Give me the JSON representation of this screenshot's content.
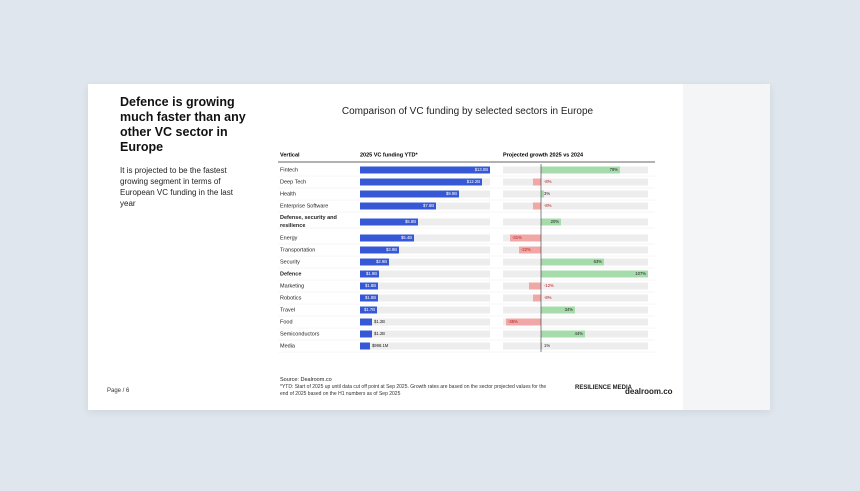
{
  "slide": {
    "headline": "Defence is growing much faster than any other VC sector in Europe",
    "body": "It is projected to be the fastest growing segment in terms of European VC funding in the last year",
    "page": "Page / 6",
    "source": "Source: Dealroom.co",
    "footnote": "*YTD: Start of 2025 up until data cut off point at Sep 2025. Growth rates are based on the sector projected values for the end of 2025 based on the H1 numbers as of Sep 2025",
    "logo_left": "RESILIENCE MEDIA",
    "logo_right": "dealroom.co"
  },
  "chart_data": {
    "type": "bar",
    "title": "Comparison of VC funding by selected sectors in Europe",
    "category_header": "Vertical",
    "categories": [
      "Fintech",
      "Deep Tech",
      "Health",
      "Enterprise Software",
      "Defense, security and resilience",
      "Energy",
      "Transportation",
      "Security",
      "Defence",
      "Marketing",
      "Robotics",
      "Travel",
      "Food",
      "Semiconductors",
      "Media"
    ],
    "highlight": [
      4,
      8
    ],
    "series": [
      {
        "name": "2025 VC funding YTD*",
        "color": "#3657d6",
        "values": [
          13.0,
          12.2,
          9.9,
          7.6,
          5.8,
          5.4,
          3.9,
          2.9,
          1.9,
          1.8,
          1.8,
          1.7,
          1.2,
          1.2,
          0.9981
        ],
        "value_labels": [
          "$13.0B",
          "$12.2B",
          "$9.9B",
          "$7.6B",
          "$5.8B",
          "$5.4B",
          "$3.9B",
          "$2.9B",
          "$1.9B",
          "$1.8B",
          "$1.8B",
          "$1.7B",
          "$1.2B",
          "$1.2B",
          "$998.1M"
        ]
      },
      {
        "name": "Projected growth 2025 vs 2024",
        "colors": {
          "positive": "#a6dcab",
          "negative": "#f2a7a7"
        },
        "values": [
          79,
          -8,
          3,
          -8,
          20,
          -31,
          -22,
          63,
          107,
          -12,
          -8,
          34,
          -35,
          44,
          1
        ],
        "value_labels": [
          "79%",
          "-8%",
          "3%",
          "-8%",
          "20%",
          "-31%",
          "-22%",
          "63%",
          "107%",
          "-12%",
          "-8%",
          "34%",
          "-35%",
          "44%",
          "1%"
        ]
      }
    ]
  }
}
